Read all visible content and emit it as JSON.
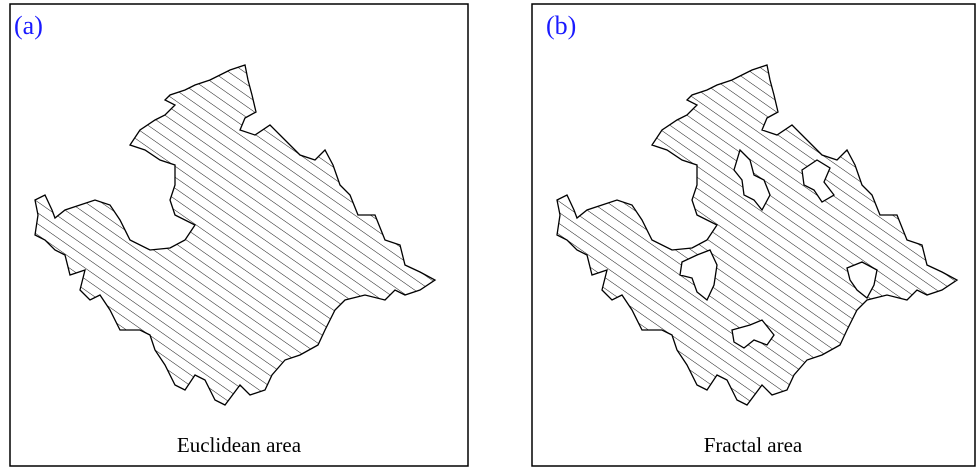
{
  "panels": [
    {
      "label": "(a)",
      "caption": "Euclidean area"
    },
    {
      "label": "(b)",
      "caption": "Fractal area"
    }
  ]
}
